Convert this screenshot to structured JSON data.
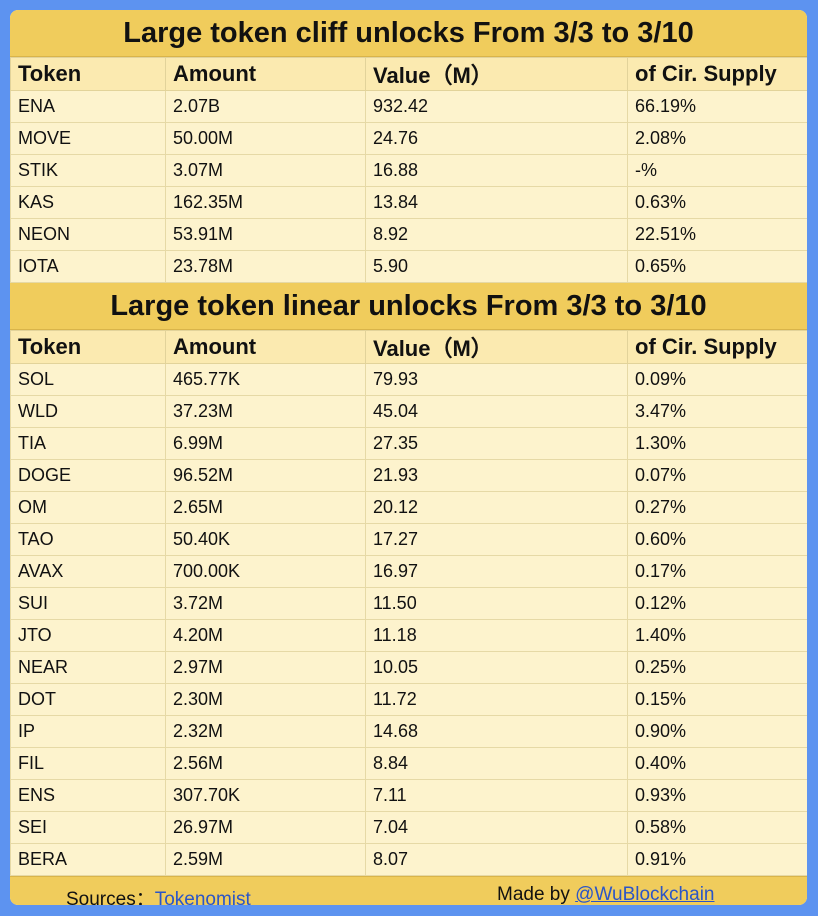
{
  "sections": [
    {
      "title": "Large token cliff unlocks From  3/3 to 3/10",
      "headers": [
        "Token",
        "Amount",
        "Value（M）",
        "of Cir. Supply"
      ],
      "rows": [
        [
          "ENA",
          "2.07B",
          "932.42",
          "66.19%"
        ],
        [
          "MOVE",
          "50.00M",
          "24.76",
          "2.08%"
        ],
        [
          "STIK",
          "3.07M",
          "16.88",
          "-%"
        ],
        [
          "KAS",
          "162.35M",
          "13.84",
          "0.63%"
        ],
        [
          "NEON",
          "53.91M",
          "8.92",
          "22.51%"
        ],
        [
          "IOTA",
          "23.78M",
          "5.90",
          "0.65%"
        ]
      ]
    },
    {
      "title": "Large token linear unlocks From  3/3 to 3/10",
      "headers": [
        "Token",
        "Amount",
        "Value（M）",
        "of Cir. Supply"
      ],
      "rows": [
        [
          "SOL",
          "465.77K",
          "79.93",
          "0.09%"
        ],
        [
          "WLD",
          "37.23M",
          "45.04",
          "3.47%"
        ],
        [
          "TIA",
          "6.99M",
          "27.35",
          "1.30%"
        ],
        [
          "DOGE",
          "96.52M",
          "21.93",
          "0.07%"
        ],
        [
          "OM",
          "2.65M",
          "20.12",
          "0.27%"
        ],
        [
          "TAO",
          "50.40K",
          "17.27",
          "0.60%"
        ],
        [
          "AVAX",
          "700.00K",
          "16.97",
          "0.17%"
        ],
        [
          "SUI",
          "3.72M",
          "11.50",
          "0.12%"
        ],
        [
          "JTO",
          "4.20M",
          "11.18",
          "1.40%"
        ],
        [
          "NEAR",
          "2.97M",
          "10.05",
          "0.25%"
        ],
        [
          "DOT",
          "2.30M",
          "11.72",
          "0.15%"
        ],
        [
          "IP",
          "2.32M",
          "14.68",
          "0.90%"
        ],
        [
          "FIL",
          "2.56M",
          "8.84",
          "0.40%"
        ],
        [
          "ENS",
          "307.70K",
          "7.11",
          "0.93%"
        ],
        [
          "SEI",
          "26.97M",
          "7.04",
          "0.58%"
        ],
        [
          "BERA",
          "2.59M",
          "8.07",
          "0.91%"
        ]
      ]
    }
  ],
  "footer": {
    "sources_label": "Sources：",
    "sources_link": "Tokenomist",
    "made_label": "Made by ",
    "made_link": "@WuBlockchain"
  },
  "colors": {
    "background": "#5d93f0",
    "title_band": "#f0cc5c",
    "table_bg": "#fdf3cd",
    "link": "#2b55c7"
  }
}
